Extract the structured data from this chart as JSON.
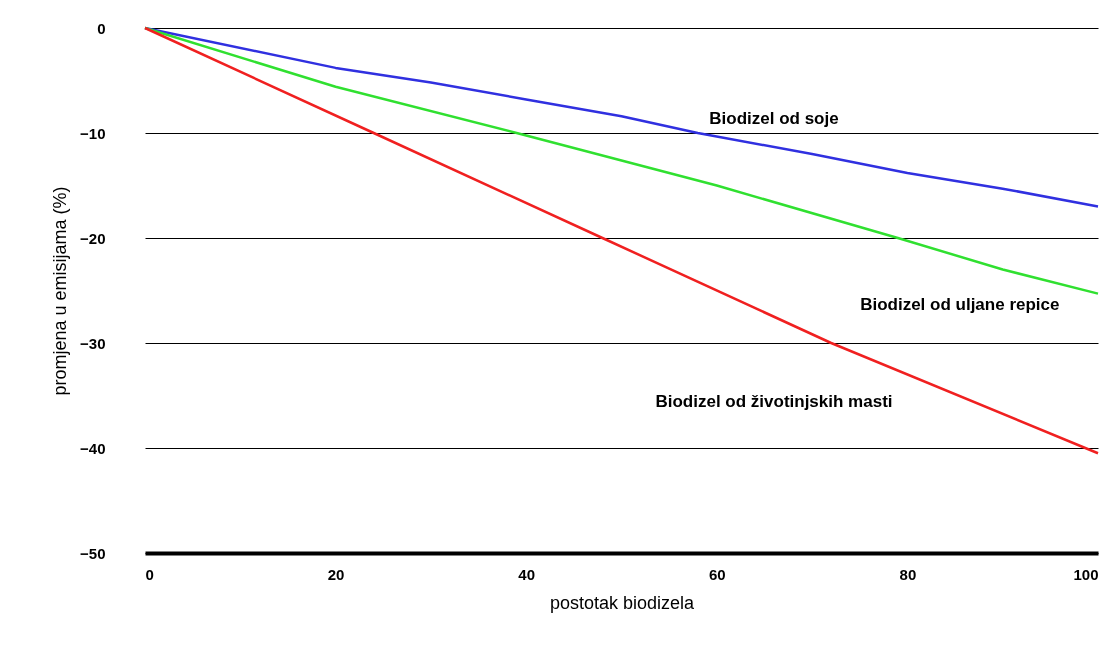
{
  "chart_data": {
    "type": "line",
    "xlabel": "postotak biodizela",
    "ylabel": "promjena u emisijama (%)",
    "xlim": [
      0,
      100
    ],
    "xticks": [
      0,
      20,
      40,
      60,
      80,
      100
    ],
    "ylim": [
      -50,
      0
    ],
    "yticks": [
      0,
      -10,
      -20,
      -30,
      -40,
      -50
    ],
    "grid": "y",
    "legend": false,
    "marker": "none",
    "line_style": "solid",
    "series": [
      {
        "name": "Biodizel od soje",
        "color": "#3030e0",
        "x": [
          0,
          20,
          30,
          40,
          50,
          58,
          70,
          80,
          90,
          100
        ],
        "values": [
          0,
          -3.8,
          -5.2,
          -6.8,
          -8.4,
          -10,
          -12,
          -13.8,
          -15.3,
          -17
        ]
      },
      {
        "name": "Biodizel od uljane repice",
        "color": "#30e030",
        "x": [
          0,
          20,
          39,
          60,
          79,
          90,
          100
        ],
        "values": [
          0,
          -5.6,
          -10,
          -15,
          -20,
          -23,
          -25.3
        ]
      },
      {
        "name": "Biodizel od životinjskih masti",
        "color": "#f02020",
        "x": [
          0,
          24,
          48,
          72,
          100
        ],
        "values": [
          0,
          -10,
          -20,
          -30,
          -40.5
        ]
      }
    ]
  }
}
